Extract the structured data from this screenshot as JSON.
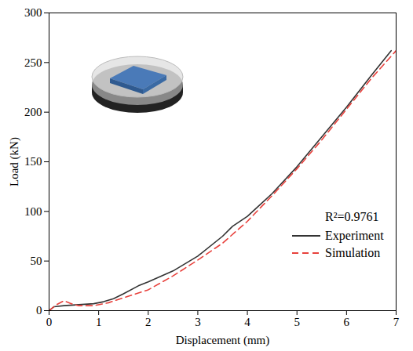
{
  "chart_data": {
    "type": "line",
    "x_label": "Displacement (mm)",
    "y_label": "Load (kN)",
    "xlim": [
      0,
      7
    ],
    "xticks": [
      0,
      1,
      2,
      3,
      4,
      5,
      6,
      7
    ],
    "ylim": [
      0,
      300
    ],
    "yticks": [
      0,
      50,
      100,
      150,
      200,
      250,
      300
    ],
    "grid": false,
    "legend": "bottom-right",
    "annotations": [
      "R²=0.9761"
    ],
    "series": [
      {
        "name": "Experiment",
        "color": "#333333",
        "line_style": "solid",
        "x": [
          0,
          0.1,
          0.3,
          0.6,
          0.9,
          1.1,
          1.3,
          1.5,
          1.8,
          2.0,
          2.5,
          3.0,
          3.5,
          3.7,
          4.0,
          4.5,
          5.0,
          5.5,
          6.0,
          6.5,
          6.9
        ],
        "values": [
          0,
          4,
          5,
          6,
          7,
          9,
          12,
          17,
          25,
          29,
          40,
          55,
          75,
          85,
          95,
          118,
          145,
          175,
          205,
          237,
          262
        ]
      },
      {
        "name": "Simulation",
        "color": "#e8413c",
        "line_style": "dashed",
        "x": [
          0,
          0.15,
          0.3,
          0.45,
          0.6,
          0.9,
          1.2,
          1.5,
          2.0,
          2.5,
          3.0,
          3.5,
          4.0,
          4.5,
          5.0,
          5.5,
          6.0,
          6.5,
          7.0
        ],
        "values": [
          0,
          6,
          10,
          7,
          5,
          5,
          8,
          13,
          21,
          35,
          51,
          68,
          90,
          116,
          143,
          172,
          203,
          234,
          262
        ]
      }
    ]
  }
}
